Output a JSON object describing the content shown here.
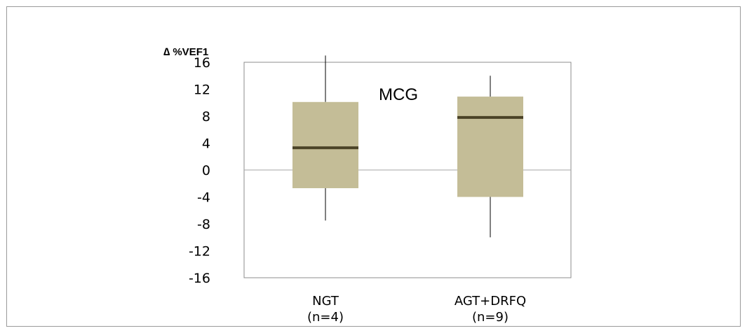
{
  "chart_data": {
    "type": "box",
    "title": "MCG",
    "ylabel": "∆ %VEF1",
    "ylim": [
      -16,
      16
    ],
    "yticks": [
      16,
      12,
      8,
      4,
      0,
      -4,
      -8,
      -12,
      -16
    ],
    "categories": [
      {
        "label": "NGT",
        "sublabel": "(n=4)"
      },
      {
        "label": "AGT+DRFQ",
        "sublabel": "(n=9)"
      }
    ],
    "boxes": [
      {
        "whisker_low": -7.5,
        "q1": -2.7,
        "median": 3.3,
        "q3": 10.1,
        "whisker_high": 17.0
      },
      {
        "whisker_low": -10.0,
        "q1": -4.0,
        "median": 7.8,
        "q3": 10.9,
        "whisker_high": 14.0
      }
    ],
    "grid": false,
    "colors": {
      "box_fill": "#c4bd97",
      "median": "#4a4226",
      "whisker": "#000000",
      "axis": "#8c8c8c",
      "zero_line": "#a6a6a6"
    }
  }
}
